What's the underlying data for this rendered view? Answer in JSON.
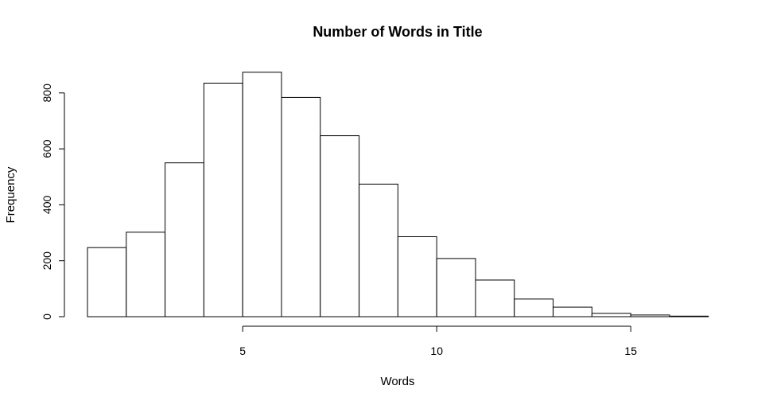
{
  "chart_data": {
    "type": "bar",
    "title": "Number of Words in Title",
    "xlabel": "Words",
    "ylabel": "Frequency",
    "bins": [
      {
        "start": 1,
        "end": 2,
        "value": 247
      },
      {
        "start": 2,
        "end": 3,
        "value": 302
      },
      {
        "start": 3,
        "end": 4,
        "value": 550
      },
      {
        "start": 4,
        "end": 5,
        "value": 835
      },
      {
        "start": 5,
        "end": 6,
        "value": 874
      },
      {
        "start": 6,
        "end": 7,
        "value": 784
      },
      {
        "start": 7,
        "end": 8,
        "value": 647
      },
      {
        "start": 8,
        "end": 9,
        "value": 474
      },
      {
        "start": 9,
        "end": 10,
        "value": 286
      },
      {
        "start": 10,
        "end": 11,
        "value": 208
      },
      {
        "start": 11,
        "end": 12,
        "value": 131
      },
      {
        "start": 12,
        "end": 13,
        "value": 63
      },
      {
        "start": 13,
        "end": 14,
        "value": 34
      },
      {
        "start": 14,
        "end": 15,
        "value": 12
      },
      {
        "start": 15,
        "end": 16,
        "value": 6
      },
      {
        "start": 16,
        "end": 17,
        "value": 2
      }
    ],
    "x_ticks": [
      5,
      10,
      15
    ],
    "y_ticks": [
      0,
      200,
      400,
      600,
      800
    ],
    "xlim": [
      1,
      17
    ],
    "ylim": [
      0,
      874
    ],
    "grid": false,
    "legend": "none"
  }
}
